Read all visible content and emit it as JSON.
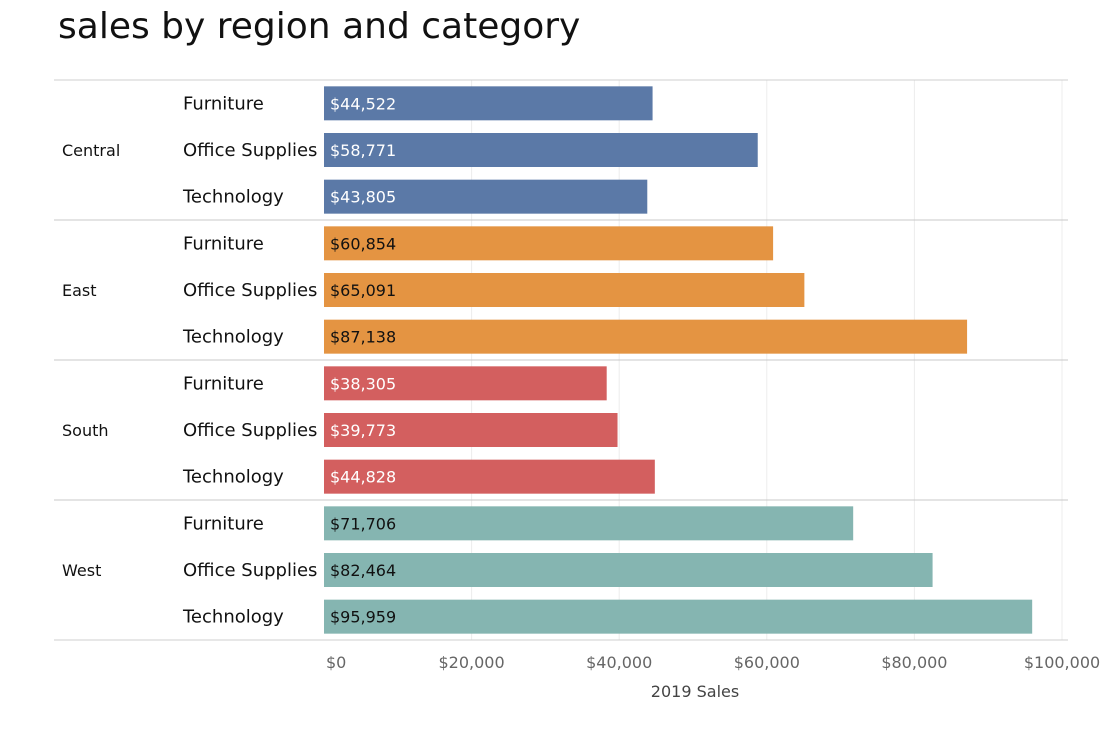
{
  "chart_data": {
    "type": "bar",
    "orientation": "horizontal",
    "title": "sales by region and category",
    "xlabel": "2019 Sales",
    "ylabel": "",
    "xlim": [
      0,
      100000
    ],
    "x_ticks": [
      0,
      20000,
      40000,
      60000,
      80000,
      100000
    ],
    "x_tick_labels": [
      "$0",
      "$20,000",
      "$40,000",
      "$60,000",
      "$80,000",
      "$100,000"
    ],
    "grid": "vertical gridlines",
    "data_labels": true,
    "groups": [
      {
        "region": "Central",
        "color": "#5b79a7",
        "label_color": "#ffffff",
        "bars": [
          {
            "category": "Furniture",
            "value": 44522,
            "label": "$44,522"
          },
          {
            "category": "Office Supplies",
            "value": 58771,
            "label": "$58,771"
          },
          {
            "category": "Technology",
            "value": 43805,
            "label": "$43,805"
          }
        ]
      },
      {
        "region": "East",
        "color": "#e49442",
        "label_color": "#111111",
        "bars": [
          {
            "category": "Furniture",
            "value": 60854,
            "label": "$60,854"
          },
          {
            "category": "Office Supplies",
            "value": 65091,
            "label": "$65,091"
          },
          {
            "category": "Technology",
            "value": 87138,
            "label": "$87,138"
          }
        ]
      },
      {
        "region": "South",
        "color": "#d35f5f",
        "label_color": "#ffffff",
        "bars": [
          {
            "category": "Furniture",
            "value": 38305,
            "label": "$38,305"
          },
          {
            "category": "Office Supplies",
            "value": 39773,
            "label": "$39,773"
          },
          {
            "category": "Technology",
            "value": 44828,
            "label": "$44,828"
          }
        ]
      },
      {
        "region": "West",
        "color": "#85b5b1",
        "label_color": "#111111",
        "bars": [
          {
            "category": "Furniture",
            "value": 71706,
            "label": "$71,706"
          },
          {
            "category": "Office Supplies",
            "value": 82464,
            "label": "$82,464"
          },
          {
            "category": "Technology",
            "value": 95959,
            "label": "$95,959"
          }
        ]
      }
    ]
  }
}
